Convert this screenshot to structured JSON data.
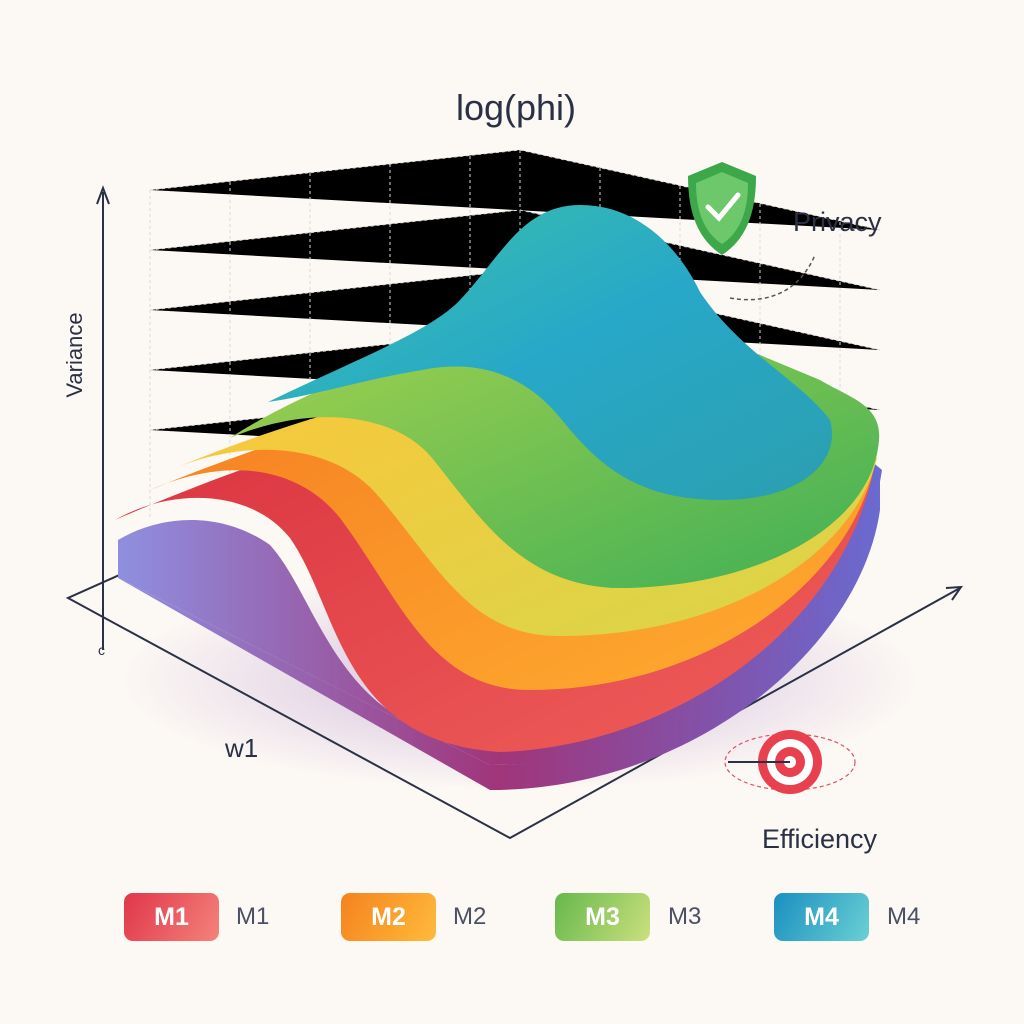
{
  "chart_data": {
    "type": "surface",
    "title": "log(phi)",
    "ylabel": "Variance",
    "xlabel": "w1",
    "origin_label": "c",
    "annotations": [
      {
        "label": "Privacy",
        "icon": "shield-check-icon"
      },
      {
        "label": "Efficiency",
        "icon": "target-icon"
      }
    ],
    "grid": true,
    "legend_placement": "bottom",
    "series": [
      {
        "name": "M1",
        "chip": "M1",
        "color": "#e5404f"
      },
      {
        "name": "M2",
        "chip": "M2",
        "color": "#f7941f"
      },
      {
        "name": "M3",
        "chip": "M3",
        "color": "#7cc24f"
      },
      {
        "name": "M4",
        "chip": "M4",
        "color": "#1f9fc4"
      }
    ]
  }
}
